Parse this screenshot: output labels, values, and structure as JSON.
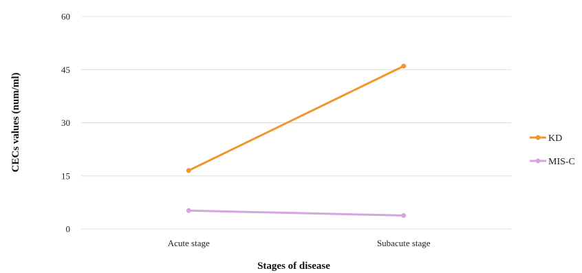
{
  "chart_data": {
    "type": "line",
    "title": "",
    "xlabel": "Stages of disease",
    "ylabel": "CECs values (num/ml)",
    "categories": [
      "Acute stage",
      "Subacute stage"
    ],
    "ylim": [
      0,
      60
    ],
    "yticks": [
      0,
      15,
      30,
      45,
      60
    ],
    "grid": true,
    "legend_position": "right",
    "series": [
      {
        "name": "KD",
        "values": [
          16.5,
          46
        ],
        "color": "#f0962e"
      },
      {
        "name": "MIS-C",
        "values": [
          5.2,
          3.8
        ],
        "color": "#d4a6e0"
      }
    ]
  }
}
